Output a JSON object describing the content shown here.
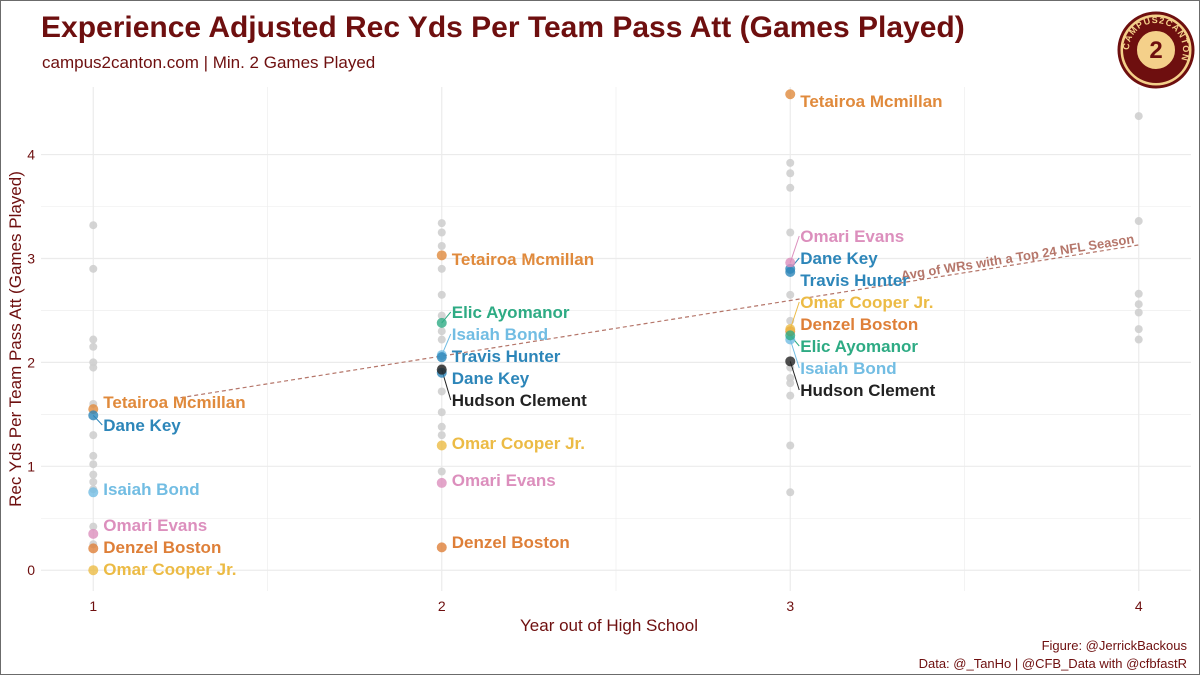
{
  "title": "Experience Adjusted Rec Yds Per Team Pass Att (Games Played)",
  "subtitle": "campus2canton.com | Min. 2 Games Played",
  "caption": {
    "line1": "Figure: @JerrickBackous",
    "line2": "Data: @_TanHo | @CFB_Data with @cfbfastR"
  },
  "logo": {
    "text": "CAMPUS2CANTON",
    "center": "2"
  },
  "colors": {
    "title": "#6e0f0f",
    "background_points": "#cfcfcf",
    "trend_line": "#b5766a",
    "grid": "#ebebeb"
  },
  "chart_data": {
    "type": "scatter",
    "xlabel": "Year out of High School",
    "ylabel": "Rec Yds Per Team Pass Att (Games Played)",
    "xlim": [
      0.85,
      4.15
    ],
    "ylim": [
      -0.2,
      4.65
    ],
    "x_ticks": [
      1,
      2,
      3,
      4
    ],
    "y_ticks": [
      0,
      1,
      2,
      3,
      4
    ],
    "grid": true,
    "legend": "none",
    "background_points": [
      {
        "x": 1,
        "y": 3.32
      },
      {
        "x": 1,
        "y": 2.9
      },
      {
        "x": 1,
        "y": 2.22
      },
      {
        "x": 1,
        "y": 2.15
      },
      {
        "x": 1,
        "y": 2.0
      },
      {
        "x": 1,
        "y": 1.95
      },
      {
        "x": 1,
        "y": 1.6
      },
      {
        "x": 1,
        "y": 1.3
      },
      {
        "x": 1,
        "y": 1.1
      },
      {
        "x": 1,
        "y": 1.02
      },
      {
        "x": 1,
        "y": 0.92
      },
      {
        "x": 1,
        "y": 0.85
      },
      {
        "x": 1,
        "y": 0.78
      },
      {
        "x": 1,
        "y": 0.42
      },
      {
        "x": 1,
        "y": 0.25
      },
      {
        "x": 2,
        "y": 3.34
      },
      {
        "x": 2,
        "y": 3.25
      },
      {
        "x": 2,
        "y": 3.12
      },
      {
        "x": 2,
        "y": 2.9
      },
      {
        "x": 2,
        "y": 2.65
      },
      {
        "x": 2,
        "y": 2.45
      },
      {
        "x": 2,
        "y": 2.3
      },
      {
        "x": 2,
        "y": 2.22
      },
      {
        "x": 2,
        "y": 1.95
      },
      {
        "x": 2,
        "y": 1.72
      },
      {
        "x": 2,
        "y": 1.52
      },
      {
        "x": 2,
        "y": 1.38
      },
      {
        "x": 2,
        "y": 1.3
      },
      {
        "x": 2,
        "y": 0.95
      },
      {
        "x": 3,
        "y": 3.92
      },
      {
        "x": 3,
        "y": 3.82
      },
      {
        "x": 3,
        "y": 3.68
      },
      {
        "x": 3,
        "y": 3.25
      },
      {
        "x": 3,
        "y": 2.65
      },
      {
        "x": 3,
        "y": 2.4
      },
      {
        "x": 3,
        "y": 1.95
      },
      {
        "x": 3,
        "y": 1.85
      },
      {
        "x": 3,
        "y": 1.8
      },
      {
        "x": 3,
        "y": 1.68
      },
      {
        "x": 3,
        "y": 1.2
      },
      {
        "x": 3,
        "y": 0.75
      },
      {
        "x": 4,
        "y": 4.37
      },
      {
        "x": 4,
        "y": 3.36
      },
      {
        "x": 4,
        "y": 2.66
      },
      {
        "x": 4,
        "y": 2.56
      },
      {
        "x": 4,
        "y": 2.48
      },
      {
        "x": 4,
        "y": 2.32
      },
      {
        "x": 4,
        "y": 2.22
      }
    ],
    "trend_line": {
      "label": "Avg of WRs with a Top 24 NFL Season",
      "x": [
        1.25,
        4.0
      ],
      "y": [
        1.66,
        3.13
      ]
    },
    "players": [
      {
        "name": "Tetairoa Mcmillan",
        "color": "#e08a3c",
        "points": [
          {
            "x": 1,
            "y": 1.55
          },
          {
            "x": 2,
            "y": 3.03
          },
          {
            "x": 3,
            "y": 4.58
          }
        ]
      },
      {
        "name": "Dane Key",
        "color": "#2d86b9",
        "points": [
          {
            "x": 1,
            "y": 1.49
          },
          {
            "x": 2,
            "y": 1.9
          },
          {
            "x": 3,
            "y": 2.9
          }
        ]
      },
      {
        "name": "Isaiah Bond",
        "color": "#72bde3",
        "points": [
          {
            "x": 1,
            "y": 0.75
          },
          {
            "x": 2,
            "y": 2.07
          },
          {
            "x": 3,
            "y": 2.22
          }
        ]
      },
      {
        "name": "Omari Evans",
        "color": "#dc8fbd",
        "points": [
          {
            "x": 1,
            "y": 0.35
          },
          {
            "x": 2,
            "y": 0.84
          },
          {
            "x": 3,
            "y": 2.96
          }
        ]
      },
      {
        "name": "Denzel Boston",
        "color": "#de7f38",
        "points": [
          {
            "x": 1,
            "y": 0.21
          },
          {
            "x": 2,
            "y": 0.22
          },
          {
            "x": 3,
            "y": 2.3
          }
        ]
      },
      {
        "name": "Omar Cooper Jr.",
        "color": "#ecbb45",
        "points": [
          {
            "x": 1,
            "y": 0.0
          },
          {
            "x": 2,
            "y": 1.2
          },
          {
            "x": 3,
            "y": 2.32
          }
        ]
      },
      {
        "name": "Elic Ayomanor",
        "color": "#2eab84",
        "points": [
          {
            "x": 2,
            "y": 2.38
          },
          {
            "x": 3,
            "y": 2.26
          }
        ]
      },
      {
        "name": "Travis Hunter",
        "color": "#2d86b9",
        "points": [
          {
            "x": 2,
            "y": 2.05
          },
          {
            "x": 3,
            "y": 2.87
          }
        ]
      },
      {
        "name": "Hudson Clement",
        "color": "#222222",
        "points": [
          {
            "x": 2,
            "y": 1.93
          },
          {
            "x": 3,
            "y": 2.01
          }
        ]
      }
    ]
  }
}
